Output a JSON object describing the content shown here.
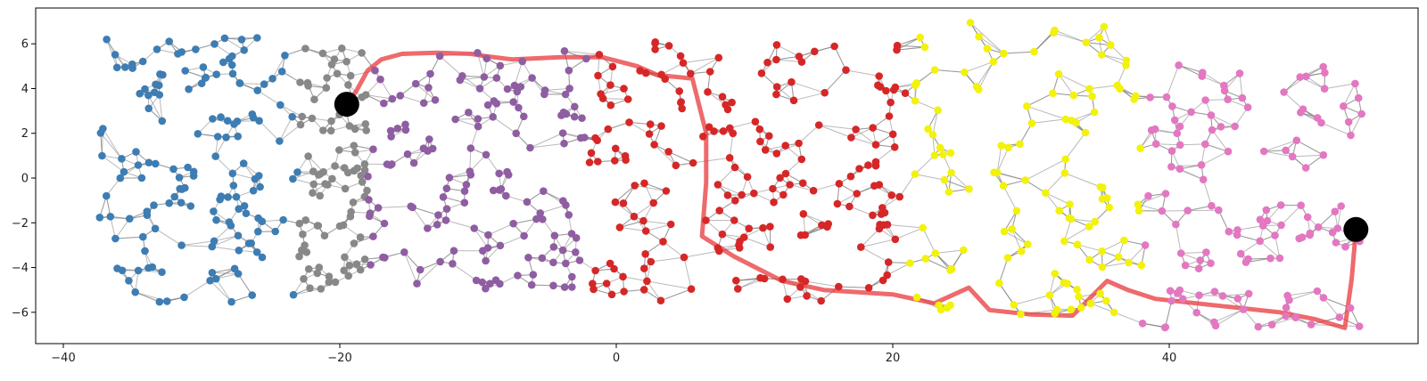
{
  "chart_data": {
    "type": "scatter",
    "title": "",
    "xlabel": "",
    "ylabel": "",
    "xlim": [
      -42,
      58
    ],
    "ylim": [
      -7.4,
      7.6
    ],
    "x_ticks": [
      -40,
      -20,
      0,
      20,
      40
    ],
    "y_ticks": [
      -6,
      -4,
      -2,
      0,
      2,
      4,
      6
    ],
    "x_tick_labels": [
      "−40",
      "−20",
      "0",
      "20",
      "40"
    ],
    "y_tick_labels": [
      "−6",
      "−4",
      "−2",
      "0",
      "2",
      "4",
      "6"
    ],
    "grid": false,
    "legend": "none",
    "edge_color": "#808080",
    "path_color": "#e8383b",
    "endpoint_color": "#000000",
    "cluster_colors": {
      "blue": "#3d7db3",
      "gray": "#888888",
      "purple": "#8f5da2",
      "red": "#d62728",
      "yellow": "#f2f20a",
      "pink": "#e377c2"
    },
    "clusters": [
      {
        "name": "blue",
        "x_range": [
          -37.5,
          -23
        ],
        "y_range": [
          -5.6,
          6.3
        ],
        "count": 150
      },
      {
        "name": "gray",
        "x_range": [
          -23,
          -18
        ],
        "y_range": [
          -5.0,
          6.0
        ],
        "count": 90
      },
      {
        "name": "purple",
        "x_range": [
          -18,
          -2
        ],
        "y_range": [
          -5.0,
          5.7
        ],
        "count": 150
      },
      {
        "name": "red",
        "x_range": [
          -2,
          21
        ],
        "y_range": [
          -5.5,
          6.4
        ],
        "count": 200
      },
      {
        "name": "yellow",
        "x_range": [
          21,
          38
        ],
        "y_range": [
          -6.1,
          7.0
        ],
        "count": 120
      },
      {
        "name": "pink",
        "x_range": [
          38,
          54
        ],
        "y_range": [
          -6.7,
          5.1
        ],
        "count": 130
      }
    ],
    "endpoints": [
      {
        "x": -19.5,
        "y": 3.3
      },
      {
        "x": 53.5,
        "y": -2.3
      }
    ],
    "path": [
      [
        -19.5,
        3.3
      ],
      [
        -18.8,
        3.9
      ],
      [
        -18.0,
        4.8
      ],
      [
        -17.0,
        5.3
      ],
      [
        -15.5,
        5.55
      ],
      [
        -13.0,
        5.6
      ],
      [
        -10.5,
        5.55
      ],
      [
        -9.5,
        5.45
      ],
      [
        -7.5,
        5.3
      ],
      [
        -4.0,
        5.4
      ],
      [
        -1.0,
        5.4
      ],
      [
        1.5,
        5.0
      ],
      [
        3.0,
        4.6
      ],
      [
        5.5,
        4.45
      ],
      [
        6.5,
        2.0
      ],
      [
        6.5,
        -0.2
      ],
      [
        6.2,
        -2.6
      ],
      [
        8.5,
        -3.5
      ],
      [
        12.0,
        -4.6
      ],
      [
        15.0,
        -5.0
      ],
      [
        17.5,
        -5.1
      ],
      [
        20.0,
        -5.2
      ],
      [
        23.0,
        -5.6
      ],
      [
        25.5,
        -4.9
      ],
      [
        27.0,
        -5.9
      ],
      [
        30.0,
        -6.1
      ],
      [
        33.0,
        -6.15
      ],
      [
        35.5,
        -4.6
      ],
      [
        37.0,
        -5.0
      ],
      [
        39.0,
        -5.4
      ],
      [
        42.0,
        -5.6
      ],
      [
        45.0,
        -5.8
      ],
      [
        48.0,
        -6.0
      ],
      [
        50.5,
        -6.3
      ],
      [
        52.7,
        -6.7
      ],
      [
        53.2,
        -4.5
      ],
      [
        53.5,
        -2.3
      ]
    ]
  }
}
